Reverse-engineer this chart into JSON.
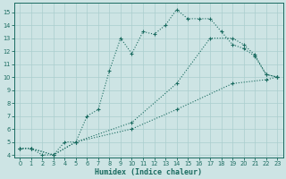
{
  "xlabel": "Humidex (Indice chaleur)",
  "xlim": [
    -0.5,
    23.5
  ],
  "ylim": [
    3.8,
    15.7
  ],
  "xticks": [
    0,
    1,
    2,
    3,
    4,
    5,
    6,
    7,
    8,
    9,
    10,
    11,
    12,
    13,
    14,
    15,
    16,
    17,
    18,
    19,
    20,
    21,
    22,
    23
  ],
  "yticks": [
    4,
    5,
    6,
    7,
    8,
    9,
    10,
    11,
    12,
    13,
    14,
    15
  ],
  "bg_color": "#cde4e4",
  "grid_color": "#aacece",
  "line_color": "#1a6b60",
  "line1_x": [
    0,
    1,
    2,
    3,
    4,
    5,
    6,
    7,
    8,
    9,
    10,
    11,
    12,
    13,
    14,
    15,
    16,
    17,
    18,
    19,
    20,
    21,
    22,
    23
  ],
  "line1_y": [
    4.5,
    4.5,
    4.0,
    4.0,
    5.0,
    5.0,
    7.0,
    7.5,
    10.5,
    13.0,
    11.8,
    13.5,
    13.3,
    14.0,
    15.2,
    14.5,
    14.5,
    14.5,
    13.5,
    12.5,
    12.2,
    11.6,
    10.2,
    10.0
  ],
  "line2_x": [
    0,
    1,
    3,
    5,
    10,
    14,
    17,
    19,
    20,
    21,
    22,
    23
  ],
  "line2_y": [
    4.5,
    4.5,
    4.0,
    5.0,
    6.5,
    9.5,
    13.0,
    13.0,
    12.5,
    11.7,
    10.2,
    10.0
  ],
  "line3_x": [
    0,
    1,
    3,
    5,
    10,
    14,
    19,
    22,
    23
  ],
  "line3_y": [
    4.5,
    4.5,
    4.0,
    5.0,
    6.0,
    7.5,
    9.5,
    9.8,
    10.0
  ]
}
